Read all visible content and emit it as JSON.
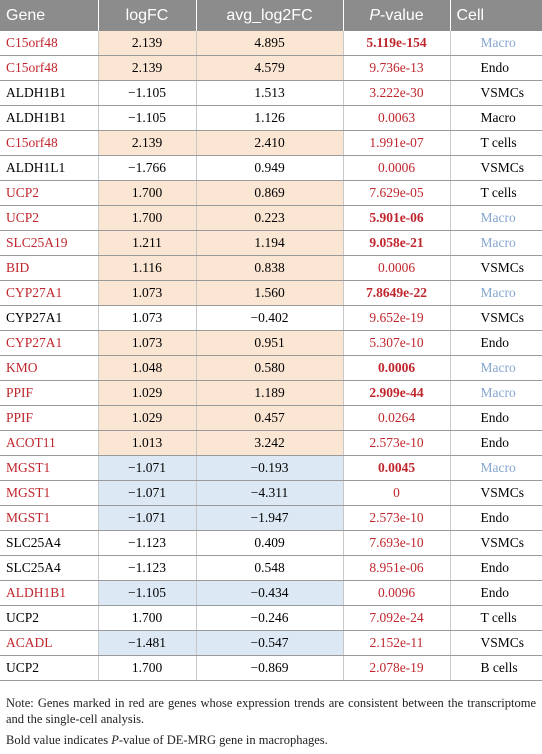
{
  "table": {
    "header": [
      "Gene",
      "logFC",
      "avg_log2FC",
      {
        "italic": "P",
        "rest": "-value"
      },
      "Cell"
    ],
    "rows": [
      {
        "gene": "C15orf48",
        "logFC": "2.139",
        "avg": "4.895",
        "p": "5.119e-154",
        "cell": "Macro",
        "red": true,
        "bold": true,
        "shade": "up"
      },
      {
        "gene": "C15orf48",
        "logFC": "2.139",
        "avg": "4.579",
        "p": "9.736e-13",
        "cell": "Endo",
        "red": true,
        "bold": false,
        "shade": "up"
      },
      {
        "gene": "ALDH1B1",
        "logFC": "−1.105",
        "avg": "1.513",
        "p": "3.222e-30",
        "cell": "VSMCs",
        "red": false,
        "bold": false,
        "shade": "none"
      },
      {
        "gene": "ALDH1B1",
        "logFC": "−1.105",
        "avg": "1.126",
        "p": "0.0063",
        "cell": "Macro",
        "red": false,
        "bold": false,
        "shade": "none"
      },
      {
        "gene": "C15orf48",
        "logFC": "2.139",
        "avg": "2.410",
        "p": "1.991e-07",
        "cell": "T cells",
        "red": true,
        "bold": false,
        "shade": "up"
      },
      {
        "gene": "ALDH1L1",
        "logFC": "−1.766",
        "avg": "0.949",
        "p": "0.0006",
        "cell": "VSMCs",
        "red": false,
        "bold": false,
        "shade": "none"
      },
      {
        "gene": "UCP2",
        "logFC": "1.700",
        "avg": "0.869",
        "p": "7.629e-05",
        "cell": "T cells",
        "red": true,
        "bold": false,
        "shade": "up"
      },
      {
        "gene": "UCP2",
        "logFC": "1.700",
        "avg": "0.223",
        "p": "5.901e-06",
        "cell": "Macro",
        "red": true,
        "bold": true,
        "shade": "up"
      },
      {
        "gene": "SLC25A19",
        "logFC": "1.211",
        "avg": "1.194",
        "p": "9.058e-21",
        "cell": "Macro",
        "red": true,
        "bold": true,
        "shade": "up"
      },
      {
        "gene": "BID",
        "logFC": "1.116",
        "avg": "0.838",
        "p": "0.0006",
        "cell": "VSMCs",
        "red": true,
        "bold": false,
        "shade": "up"
      },
      {
        "gene": "CYP27A1",
        "logFC": "1.073",
        "avg": "1.560",
        "p": "7.8649e-22",
        "cell": "Macro",
        "red": true,
        "bold": true,
        "shade": "up"
      },
      {
        "gene": "CYP27A1",
        "logFC": "1.073",
        "avg": "−0.402",
        "p": "9.652e-19",
        "cell": "VSMCs",
        "red": false,
        "bold": false,
        "shade": "none"
      },
      {
        "gene": "CYP27A1",
        "logFC": "1.073",
        "avg": "0.951",
        "p": "5.307e-10",
        "cell": "Endo",
        "red": true,
        "bold": false,
        "shade": "up"
      },
      {
        "gene": "KMO",
        "logFC": "1.048",
        "avg": "0.580",
        "p": "0.0006",
        "cell": "Macro",
        "red": true,
        "bold": true,
        "shade": "up"
      },
      {
        "gene": "PPIF",
        "logFC": "1.029",
        "avg": "1.189",
        "p": "2.909e-44",
        "cell": "Macro",
        "red": true,
        "bold": true,
        "shade": "up"
      },
      {
        "gene": "PPIF",
        "logFC": "1.029",
        "avg": "0.457",
        "p": "0.0264",
        "cell": "Endo",
        "red": true,
        "bold": false,
        "shade": "up"
      },
      {
        "gene": "ACOT11",
        "logFC": "1.013",
        "avg": "3.242",
        "p": "2.573e-10",
        "cell": "Endo",
        "red": true,
        "bold": false,
        "shade": "up"
      },
      {
        "gene": "MGST1",
        "logFC": "−1.071",
        "avg": "−0.193",
        "p": "0.0045",
        "cell": "Macro",
        "red": true,
        "bold": true,
        "shade": "down"
      },
      {
        "gene": "MGST1",
        "logFC": "−1.071",
        "avg": "−4.311",
        "p": "0",
        "cell": "VSMCs",
        "red": true,
        "bold": false,
        "shade": "down"
      },
      {
        "gene": "MGST1",
        "logFC": "−1.071",
        "avg": "−1.947",
        "p": "2.573e-10",
        "cell": "Endo",
        "red": true,
        "bold": false,
        "shade": "down"
      },
      {
        "gene": "SLC25A4",
        "logFC": "−1.123",
        "avg": "0.409",
        "p": "7.693e-10",
        "cell": "VSMCs",
        "red": false,
        "bold": false,
        "shade": "none"
      },
      {
        "gene": "SLC25A4",
        "logFC": "−1.123",
        "avg": "0.548",
        "p": "8.951e-06",
        "cell": "Endo",
        "red": false,
        "bold": false,
        "shade": "none"
      },
      {
        "gene": "ALDH1B1",
        "logFC": "−1.105",
        "avg": "−0.434",
        "p": "0.0096",
        "cell": "Endo",
        "red": true,
        "bold": false,
        "shade": "down"
      },
      {
        "gene": "UCP2",
        "logFC": "1.700",
        "avg": "−0.246",
        "p": "7.092e-24",
        "cell": "T cells",
        "red": false,
        "bold": false,
        "shade": "none"
      },
      {
        "gene": "ACADL",
        "logFC": "−1.481",
        "avg": "−0.547",
        "p": "2.152e-11",
        "cell": "VSMCs",
        "red": true,
        "bold": false,
        "shade": "down"
      },
      {
        "gene": "UCP2",
        "logFC": "1.700",
        "avg": "−0.869",
        "p": "2.078e-19",
        "cell": "B cells",
        "red": false,
        "bold": false,
        "shade": "none"
      }
    ]
  },
  "notes": [
    "Note: Genes marked in red are genes whose expression trends are consistent between the transcriptome and the single-cell analysis.",
    {
      "before": "Bold value indicates ",
      "italic": "P",
      "after": "-value of DE-MRG gene in macrophages."
    }
  ]
}
